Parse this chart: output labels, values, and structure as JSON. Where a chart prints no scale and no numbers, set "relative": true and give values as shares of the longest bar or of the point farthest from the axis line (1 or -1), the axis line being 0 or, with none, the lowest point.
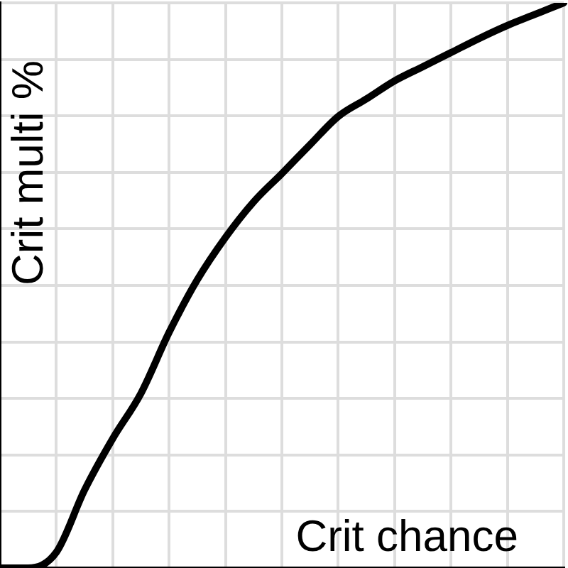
{
  "chart_data": {
    "type": "line",
    "xlabel": "Crit chance",
    "ylabel": "Crit multi %",
    "relative": true,
    "grid": true,
    "marker": "none",
    "line_style": "solid",
    "categories": [
      null,
      null,
      null,
      null,
      null,
      null,
      null,
      null,
      null,
      null,
      null,
      null,
      null,
      null,
      null,
      null,
      null,
      null,
      null,
      null,
      null
    ],
    "series": [
      {
        "color": "#000000",
        "values": [
          0,
          0,
          0.028,
          0.138,
          0.229,
          0.309,
          0.417,
          0.51,
          0.585,
          0.648,
          0.698,
          0.749,
          0.799,
          0.83,
          0.862,
          0.887,
          0.912,
          0.937,
          0.96,
          0.98,
          1
        ]
      }
    ]
  }
}
